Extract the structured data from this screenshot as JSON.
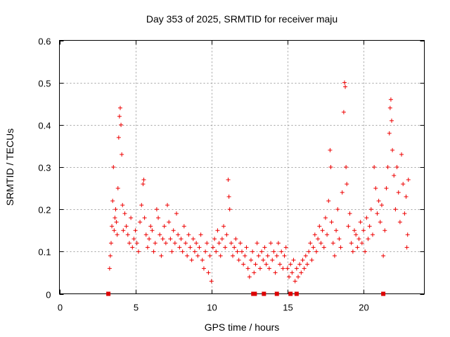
{
  "chart_data": {
    "type": "scatter",
    "title": "Day 353 of 2025, SRMTID for receiver maju",
    "xlabel": "GPS time / hours",
    "ylabel": "SRMTID / TECUs",
    "xlim": [
      0,
      24
    ],
    "ylim": [
      0,
      0.6
    ],
    "x_ticks": [
      0,
      5,
      10,
      15,
      20
    ],
    "x_tick_labels": [
      "0",
      "5",
      "10",
      "15",
      "20"
    ],
    "y_ticks": [
      0,
      0.1,
      0.2,
      0.3,
      0.4,
      0.5,
      0.6
    ],
    "y_tick_labels": [
      "0",
      "0.1",
      "0.2",
      "0.3",
      "0.4",
      "0.5",
      "0.6"
    ],
    "grid": true,
    "marker": "plus",
    "color": "#ee0000",
    "series": [
      {
        "name": "SRMTID",
        "points": [
          [
            3.3,
            0.06
          ],
          [
            3.35,
            0.09
          ],
          [
            3.4,
            0.12
          ],
          [
            3.45,
            0.16
          ],
          [
            3.5,
            0.22
          ],
          [
            3.55,
            0.3
          ],
          [
            3.6,
            0.15
          ],
          [
            3.65,
            0.18
          ],
          [
            3.7,
            0.2
          ],
          [
            3.75,
            0.17
          ],
          [
            3.8,
            0.14
          ],
          [
            3.85,
            0.25
          ],
          [
            3.9,
            0.37
          ],
          [
            3.95,
            0.42
          ],
          [
            4.0,
            0.44
          ],
          [
            4.05,
            0.4
          ],
          [
            4.1,
            0.33
          ],
          [
            4.15,
            0.21
          ],
          [
            4.2,
            0.15
          ],
          [
            4.3,
            0.19
          ],
          [
            4.4,
            0.16
          ],
          [
            4.5,
            0.14
          ],
          [
            4.6,
            0.12
          ],
          [
            4.7,
            0.18
          ],
          [
            4.8,
            0.11
          ],
          [
            4.9,
            0.13
          ],
          [
            5.0,
            0.15
          ],
          [
            5.1,
            0.12
          ],
          [
            5.2,
            0.1
          ],
          [
            5.3,
            0.17
          ],
          [
            5.4,
            0.21
          ],
          [
            5.5,
            0.26
          ],
          [
            5.55,
            0.27
          ],
          [
            5.6,
            0.18
          ],
          [
            5.7,
            0.14
          ],
          [
            5.8,
            0.11
          ],
          [
            5.9,
            0.13
          ],
          [
            6.0,
            0.16
          ],
          [
            6.1,
            0.15
          ],
          [
            6.2,
            0.1
          ],
          [
            6.3,
            0.12
          ],
          [
            6.4,
            0.2
          ],
          [
            6.5,
            0.18
          ],
          [
            6.6,
            0.14
          ],
          [
            6.7,
            0.09
          ],
          [
            6.8,
            0.13
          ],
          [
            6.9,
            0.16
          ],
          [
            7.0,
            0.12
          ],
          [
            7.1,
            0.21
          ],
          [
            7.2,
            0.17
          ],
          [
            7.3,
            0.13
          ],
          [
            7.4,
            0.1
          ],
          [
            7.5,
            0.15
          ],
          [
            7.6,
            0.12
          ],
          [
            7.7,
            0.19
          ],
          [
            7.8,
            0.14
          ],
          [
            7.9,
            0.11
          ],
          [
            8.0,
            0.13
          ],
          [
            8.1,
            0.1
          ],
          [
            8.2,
            0.16
          ],
          [
            8.3,
            0.12
          ],
          [
            8.4,
            0.09
          ],
          [
            8.5,
            0.14
          ],
          [
            8.6,
            0.11
          ],
          [
            8.7,
            0.08
          ],
          [
            8.8,
            0.13
          ],
          [
            8.9,
            0.1
          ],
          [
            9.0,
            0.12
          ],
          [
            9.1,
            0.09
          ],
          [
            9.2,
            0.11
          ],
          [
            9.3,
            0.14
          ],
          [
            9.4,
            0.08
          ],
          [
            9.5,
            0.06
          ],
          [
            9.6,
            0.1
          ],
          [
            9.7,
            0.12
          ],
          [
            9.8,
            0.05
          ],
          [
            9.9,
            0.09
          ],
          [
            10.0,
            0.03
          ],
          [
            10.1,
            0.11
          ],
          [
            10.2,
            0.13
          ],
          [
            10.3,
            0.1
          ],
          [
            10.4,
            0.15
          ],
          [
            10.5,
            0.12
          ],
          [
            10.6,
            0.09
          ],
          [
            10.7,
            0.13
          ],
          [
            10.8,
            0.16
          ],
          [
            10.9,
            0.11
          ],
          [
            11.0,
            0.14
          ],
          [
            11.1,
            0.27
          ],
          [
            11.15,
            0.23
          ],
          [
            11.2,
            0.2
          ],
          [
            11.3,
            0.12
          ],
          [
            11.4,
            0.09
          ],
          [
            11.5,
            0.11
          ],
          [
            11.6,
            0.13
          ],
          [
            11.7,
            0.1
          ],
          [
            11.8,
            0.08
          ],
          [
            11.9,
            0.12
          ],
          [
            12.0,
            0.1
          ],
          [
            12.1,
            0.07
          ],
          [
            12.2,
            0.09
          ],
          [
            12.3,
            0.11
          ],
          [
            12.4,
            0.06
          ],
          [
            12.5,
            0.04
          ],
          [
            12.6,
            0.08
          ],
          [
            12.7,
            0.1
          ],
          [
            12.8,
            0.05
          ],
          [
            12.9,
            0.07
          ],
          [
            13.0,
            0.12
          ],
          [
            13.1,
            0.09
          ],
          [
            13.2,
            0.06
          ],
          [
            13.3,
            0.1
          ],
          [
            13.4,
            0.08
          ],
          [
            13.5,
            0.11
          ],
          [
            13.6,
            0.07
          ],
          [
            13.7,
            0.09
          ],
          [
            13.8,
            0.06
          ],
          [
            13.9,
            0.12
          ],
          [
            14.0,
            0.08
          ],
          [
            14.1,
            0.1
          ],
          [
            14.2,
            0.05
          ],
          [
            14.3,
            0.09
          ],
          [
            14.4,
            0.12
          ],
          [
            14.5,
            0.07
          ],
          [
            14.6,
            0.1
          ],
          [
            14.7,
            0.06
          ],
          [
            14.8,
            0.09
          ],
          [
            14.9,
            0.11
          ],
          [
            15.0,
            0.06
          ],
          [
            15.1,
            0.04
          ],
          [
            15.2,
            0.07
          ],
          [
            15.3,
            0.05
          ],
          [
            15.4,
            0.08
          ],
          [
            15.5,
            0.03
          ],
          [
            15.6,
            0.06
          ],
          [
            15.7,
            0.04
          ],
          [
            15.8,
            0.07
          ],
          [
            15.9,
            0.05
          ],
          [
            16.0,
            0.08
          ],
          [
            16.1,
            0.06
          ],
          [
            16.2,
            0.09
          ],
          [
            16.3,
            0.07
          ],
          [
            16.4,
            0.1
          ],
          [
            16.5,
            0.12
          ],
          [
            16.6,
            0.08
          ],
          [
            16.7,
            0.11
          ],
          [
            16.8,
            0.14
          ],
          [
            16.9,
            0.1
          ],
          [
            17.0,
            0.13
          ],
          [
            17.1,
            0.16
          ],
          [
            17.2,
            0.12
          ],
          [
            17.3,
            0.15
          ],
          [
            17.4,
            0.11
          ],
          [
            17.5,
            0.18
          ],
          [
            17.6,
            0.14
          ],
          [
            17.7,
            0.22
          ],
          [
            17.8,
            0.34
          ],
          [
            17.85,
            0.3
          ],
          [
            17.9,
            0.17
          ],
          [
            18.0,
            0.12
          ],
          [
            18.1,
            0.09
          ],
          [
            18.2,
            0.15
          ],
          [
            18.3,
            0.2
          ],
          [
            18.4,
            0.13
          ],
          [
            18.5,
            0.11
          ],
          [
            18.6,
            0.24
          ],
          [
            18.7,
            0.43
          ],
          [
            18.75,
            0.5
          ],
          [
            18.8,
            0.49
          ],
          [
            18.85,
            0.3
          ],
          [
            18.9,
            0.26
          ],
          [
            19.0,
            0.16
          ],
          [
            19.1,
            0.19
          ],
          [
            19.2,
            0.12
          ],
          [
            19.3,
            0.1
          ],
          [
            19.4,
            0.15
          ],
          [
            19.5,
            0.14
          ],
          [
            19.6,
            0.11
          ],
          [
            19.7,
            0.13
          ],
          [
            19.8,
            0.17
          ],
          [
            19.9,
            0.12
          ],
          [
            20.0,
            0.15
          ],
          [
            20.1,
            0.1
          ],
          [
            20.2,
            0.18
          ],
          [
            20.3,
            0.13
          ],
          [
            20.4,
            0.16
          ],
          [
            20.5,
            0.2
          ],
          [
            20.6,
            0.14
          ],
          [
            20.7,
            0.3
          ],
          [
            20.8,
            0.25
          ],
          [
            20.9,
            0.19
          ],
          [
            21.0,
            0.22
          ],
          [
            21.1,
            0.17
          ],
          [
            21.2,
            0.21
          ],
          [
            21.3,
            0.09
          ],
          [
            21.4,
            0.15
          ],
          [
            21.5,
            0.25
          ],
          [
            21.6,
            0.3
          ],
          [
            21.7,
            0.38
          ],
          [
            21.75,
            0.44
          ],
          [
            21.8,
            0.46
          ],
          [
            21.85,
            0.41
          ],
          [
            21.9,
            0.34
          ],
          [
            22.0,
            0.28
          ],
          [
            22.1,
            0.2
          ],
          [
            22.2,
            0.3
          ],
          [
            22.3,
            0.24
          ],
          [
            22.4,
            0.17
          ],
          [
            22.5,
            0.33
          ],
          [
            22.6,
            0.26
          ],
          [
            22.7,
            0.19
          ],
          [
            22.8,
            0.23
          ],
          [
            22.85,
            0.11
          ],
          [
            22.9,
            0.14
          ],
          [
            22.95,
            0.27
          ]
        ]
      }
    ],
    "zero_flags_x": [
      3.22,
      12.75,
      12.85,
      13.45,
      14.3,
      15.2,
      15.6,
      21.3
    ]
  }
}
